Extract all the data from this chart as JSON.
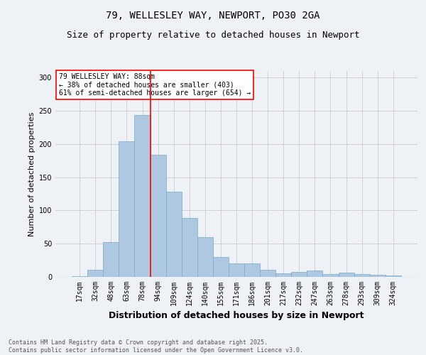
{
  "title1": "79, WELLESLEY WAY, NEWPORT, PO30 2GA",
  "title2": "Size of property relative to detached houses in Newport",
  "xlabel": "Distribution of detached houses by size in Newport",
  "ylabel": "Number of detached properties",
  "footer1": "Contains HM Land Registry data © Crown copyright and database right 2025.",
  "footer2": "Contains public sector information licensed under the Open Government Licence v3.0.",
  "annotation_line1": "79 WELLESLEY WAY: 88sqm",
  "annotation_line2": "← 38% of detached houses are smaller (403)",
  "annotation_line3": "61% of semi-detached houses are larger (654) →",
  "bar_labels": [
    "17sqm",
    "32sqm",
    "48sqm",
    "63sqm",
    "78sqm",
    "94sqm",
    "109sqm",
    "124sqm",
    "140sqm",
    "155sqm",
    "171sqm",
    "186sqm",
    "201sqm",
    "217sqm",
    "232sqm",
    "247sqm",
    "263sqm",
    "278sqm",
    "293sqm",
    "309sqm",
    "324sqm"
  ],
  "bar_values": [
    1,
    11,
    52,
    204,
    244,
    184,
    128,
    89,
    60,
    30,
    20,
    20,
    11,
    5,
    8,
    10,
    4,
    6,
    4,
    3,
    2
  ],
  "bar_color": "#adc8e0",
  "bar_edgecolor": "#7aaac8",
  "vline_x": 4.5,
  "vline_color": "red",
  "ylim": [
    0,
    310
  ],
  "yticks": [
    0,
    50,
    100,
    150,
    200,
    250,
    300
  ],
  "grid_color": "#cccccc",
  "bg_color": "#eef2f7",
  "annotation_box_color": "white",
  "annotation_box_edge": "red",
  "title1_fontsize": 10,
  "title2_fontsize": 9,
  "xlabel_fontsize": 9,
  "ylabel_fontsize": 8,
  "tick_fontsize": 7,
  "annotation_fontsize": 7,
  "footer_fontsize": 6
}
